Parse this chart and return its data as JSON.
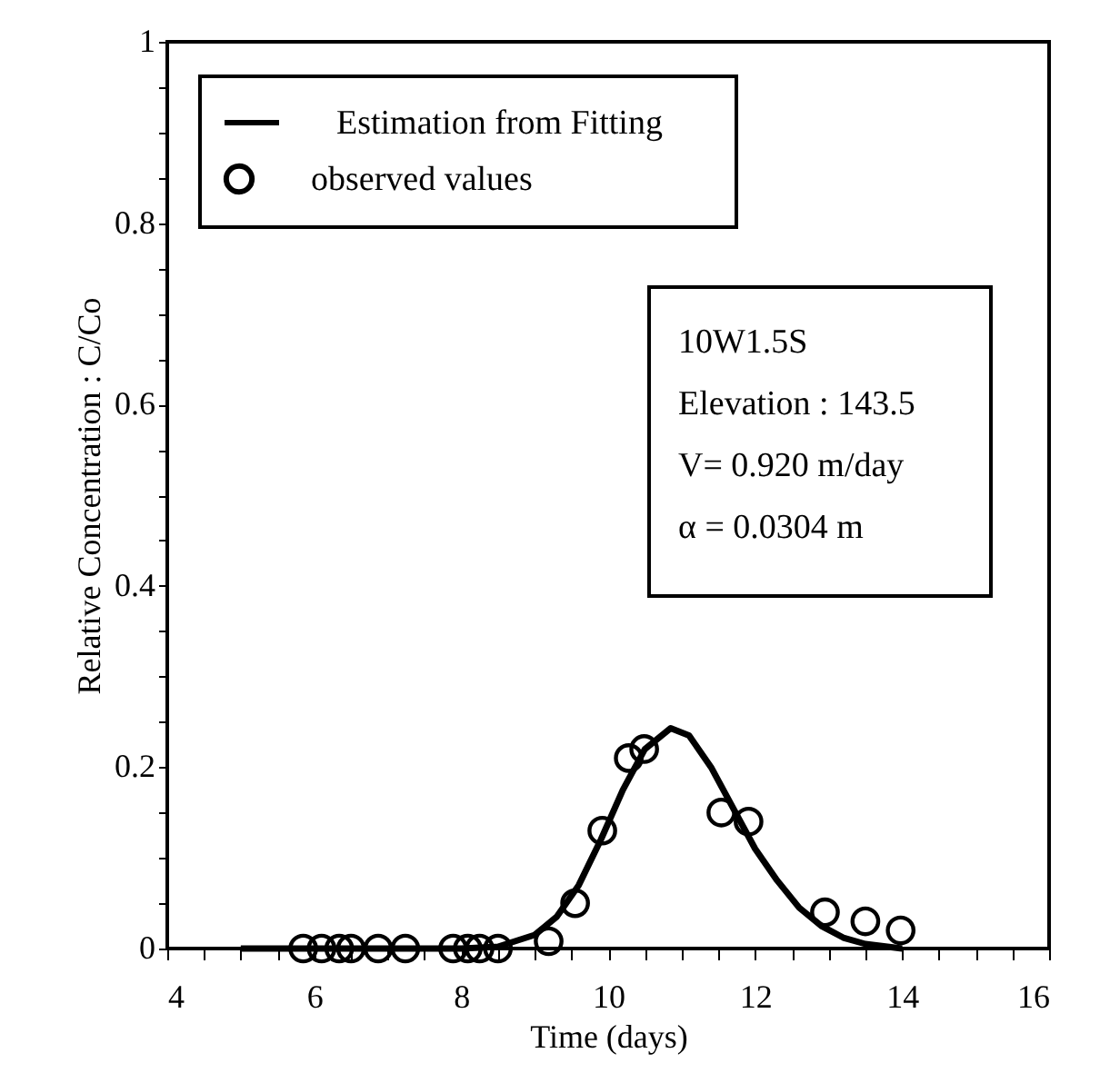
{
  "chart_data": {
    "type": "line",
    "xlabel": "Time (days)",
    "ylabel": "Relative Concentration : C/Co",
    "xlim": [
      4,
      16
    ],
    "ylim": [
      0,
      1
    ],
    "xticks": [
      4,
      {
        "value": 4.5,
        "label": null
      },
      {
        "value": 5,
        "label": null
      },
      {
        "value": 5.5,
        "label": null
      },
      6,
      {
        "value": 6.5,
        "label": null
      },
      {
        "value": 7,
        "label": null
      },
      {
        "value": 7.5,
        "label": null
      },
      8,
      {
        "value": 8.5,
        "label": null
      },
      {
        "value": 9,
        "label": null
      },
      {
        "value": 9.5,
        "label": null
      },
      10,
      {
        "value": 10.5,
        "label": null
      },
      {
        "value": 11,
        "label": null
      },
      {
        "value": 11.5,
        "label": null
      },
      12,
      {
        "value": 12.5,
        "label": null
      },
      {
        "value": 13,
        "label": null
      },
      {
        "value": 13.5,
        "label": null
      },
      14,
      {
        "value": 14.5,
        "label": null
      },
      {
        "value": 15,
        "label": null
      },
      {
        "value": 15.5,
        "label": null
      },
      16
    ],
    "yticks": [
      0,
      {
        "value": 0.05,
        "label": null
      },
      {
        "value": 0.1,
        "label": null
      },
      {
        "value": 0.15,
        "label": null
      },
      0.2,
      {
        "value": 0.25,
        "label": null
      },
      {
        "value": 0.3,
        "label": null
      },
      {
        "value": 0.35,
        "label": null
      },
      0.4,
      {
        "value": 0.45,
        "label": null
      },
      {
        "value": 0.5,
        "label": null
      },
      {
        "value": 0.55,
        "label": null
      },
      0.6,
      {
        "value": 0.65,
        "label": null
      },
      {
        "value": 0.7,
        "label": null
      },
      {
        "value": 0.75,
        "label": null
      },
      0.8,
      {
        "value": 0.85,
        "label": null
      },
      {
        "value": 0.9,
        "label": null
      },
      {
        "value": 0.95,
        "label": null
      },
      1
    ],
    "grid": false,
    "legend": "top left",
    "series": [
      {
        "name": "Estimation from Fitting",
        "color": "#000000",
        "marker": "none",
        "line_style": "solid",
        "x": [
          5,
          8,
          8.5,
          9,
          9.3,
          9.6,
          9.9,
          10.2,
          10.5,
          10.85,
          11.1,
          11.4,
          11.7,
          12.0,
          12.3,
          12.6,
          12.9,
          13.2,
          13.5,
          14
        ],
        "values": [
          0,
          0,
          0.002,
          0.015,
          0.035,
          0.07,
          0.12,
          0.175,
          0.22,
          0.243,
          0.235,
          0.2,
          0.155,
          0.11,
          0.075,
          0.045,
          0.025,
          0.012,
          0.005,
          0
        ]
      },
      {
        "name": "observed values",
        "type": "scatter",
        "color": "#000000",
        "marker": "circle",
        "x": [
          5.85,
          6.1,
          6.34,
          6.5,
          6.87,
          7.24,
          7.89,
          8.09,
          8.25,
          8.5,
          9.19,
          9.55,
          9.92,
          10.28,
          10.49,
          11.54,
          11.91,
          12.95,
          13.5,
          13.98
        ],
        "values": [
          0,
          0,
          0,
          0,
          0,
          0,
          0,
          0,
          0,
          0,
          0.008,
          0.05,
          0.13,
          0.21,
          0.22,
          0.15,
          0.14,
          0.04,
          0.03,
          0.02
        ]
      }
    ],
    "annotations": [
      "10W1.5S",
      "Elevation : 143.5",
      "V= 0.920 m/day",
      " α  = 0.0304 m"
    ]
  }
}
